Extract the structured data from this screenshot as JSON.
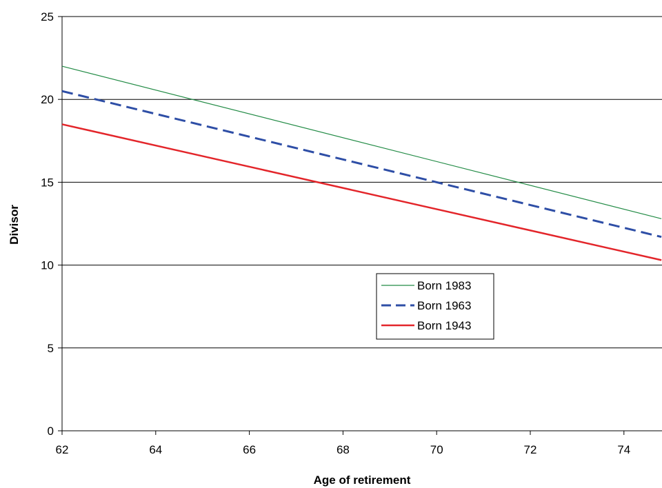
{
  "chart_data": {
    "type": "line",
    "title": "",
    "xlabel": "Age of retirement",
    "ylabel": "Divisor",
    "xlim": [
      62,
      74.8
    ],
    "ylim": [
      0,
      25
    ],
    "x_ticks": [
      "62",
      "64",
      "66",
      "68",
      "70",
      "72",
      "74"
    ],
    "y_ticks": [
      "0",
      "5",
      "10",
      "15",
      "20",
      "25"
    ],
    "grid": "horizontal",
    "legend_position": "center-right",
    "series": [
      {
        "name": "Born 1983",
        "color": "#228b45",
        "style": "solid-thin",
        "x": [
          62,
          74.8
        ],
        "y": [
          22.0,
          12.8
        ]
      },
      {
        "name": "Born 1963",
        "color": "#2e4ea6",
        "style": "dashed",
        "x": [
          62,
          74.8
        ],
        "y": [
          20.5,
          11.7
        ]
      },
      {
        "name": "Born 1943",
        "color": "#e3252a",
        "style": "solid-thick",
        "x": [
          62,
          74.8
        ],
        "y": [
          18.5,
          10.3
        ]
      }
    ]
  }
}
